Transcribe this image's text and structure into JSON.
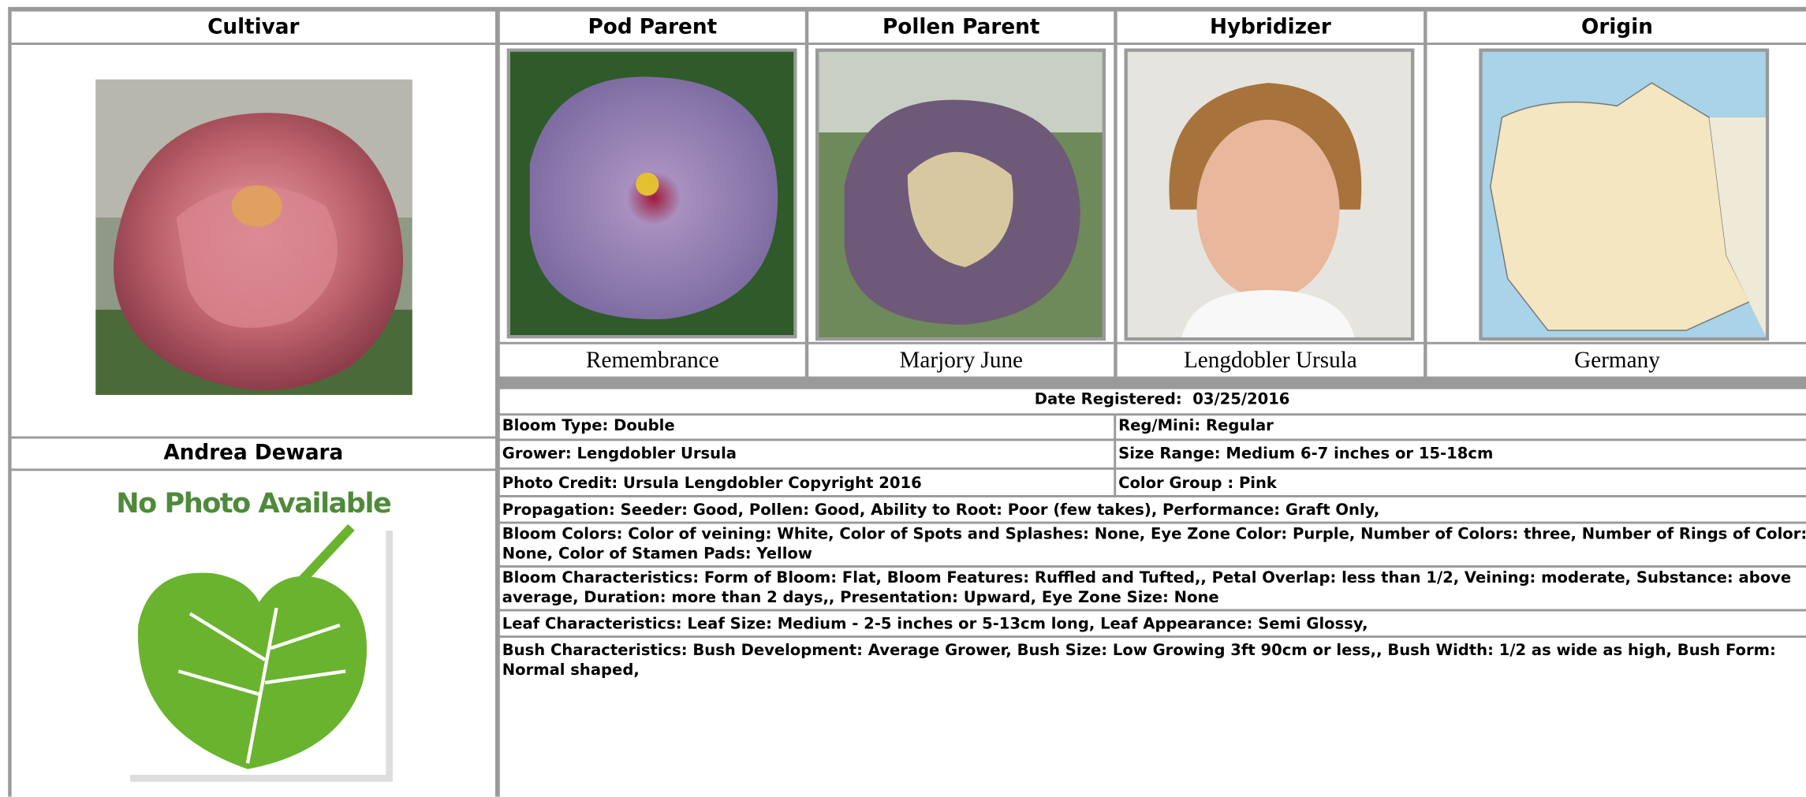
{
  "header": {
    "columns": [
      "Cultivar",
      "Pod Parent",
      "Pollen Parent",
      "Hybridizer",
      "Origin"
    ]
  },
  "cultivar": {
    "name": "Andrea Dewara",
    "no_photo": "No Photo Available"
  },
  "parents": {
    "pod": "Remembrance",
    "pollen": "Marjory June",
    "hybridizer": "Lengdobler Ursula",
    "origin": "Germany"
  },
  "details": {
    "date_registered": "Date Registered:  03/25/2016",
    "bloom_type": "Bloom Type: Double",
    "reg_mini": "Reg/Mini: Regular",
    "grower": "Grower: Lengdobler Ursula",
    "size_range": "Size Range: Medium 6-7 inches or 15-18cm",
    "photo_credit": "Photo Credit: Ursula Lengdobler Copyright 2016",
    "color_group": "Color Group : Pink",
    "propagation": "Propagation: Seeder: Good, Pollen: Good, Ability to Root: Poor (few takes), Performance: Graft Only,",
    "bloom_colors": "Bloom Colors: Color of veining: White, Color of Spots and Splashes: None, Eye Zone Color: Purple, Number of Colors: three, Number of Rings of Color: None, Color of Stamen Pads: Yellow",
    "bloom_characteristics": "Bloom Characteristics: Form of Bloom: Flat, Bloom Features: Ruffled and Tufted,, Petal Overlap: less than 1/2, Veining: moderate, Substance: above average, Duration: more than 2 days,, Presentation: Upward, Eye Zone Size: None",
    "leaf_characteristics": "Leaf Characteristics: Leaf Size: Medium - 2-5 inches or 5-13cm long, Leaf Appearance: Semi Glossy,",
    "bush_characteristics": "Bush Characteristics: Bush Development: Average Grower, Bush Size: Low Growing 3ft 90cm or less,, Bush Width: 1/2 as wide as high, Bush Form: Normal shaped,"
  }
}
